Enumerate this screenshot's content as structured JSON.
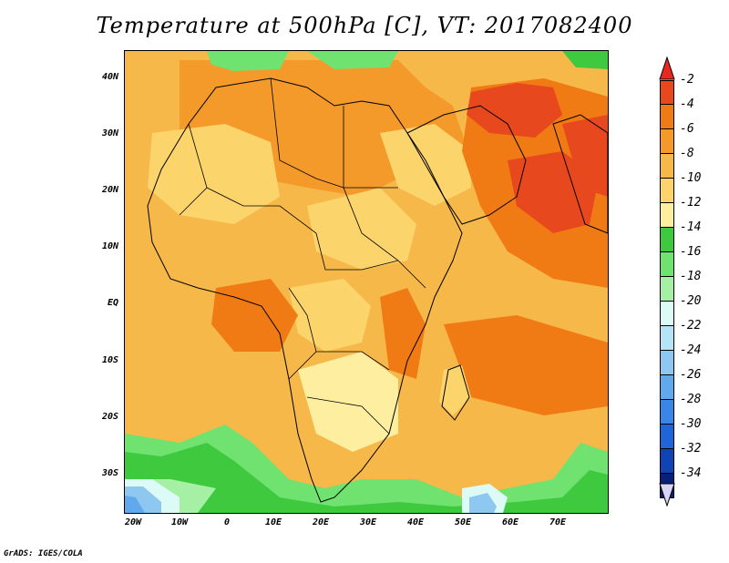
{
  "title": "Temperature at 500hPa [C], VT: 2017082400",
  "credit": "GrADS: IGES/COLA",
  "lat_labels": [
    "40N",
    "30N",
    "20N",
    "10N",
    "EQ",
    "10S",
    "20S",
    "30S"
  ],
  "lon_labels": [
    "20W",
    "10W",
    "0",
    "10E",
    "20E",
    "30E",
    "40E",
    "50E",
    "60E",
    "70E"
  ],
  "colorbar": {
    "labels": [
      "-2",
      "-4",
      "-6",
      "-8",
      "-10",
      "-12",
      "-14",
      "-16",
      "-18",
      "-20",
      "-22",
      "-24",
      "-26",
      "-28",
      "-30",
      "-32",
      "-34"
    ],
    "colors": [
      "#e8481d",
      "#f07a14",
      "#f49a2a",
      "#f7b84a",
      "#fbd46c",
      "#fdeea0",
      "#3fc93f",
      "#6fe26f",
      "#a6f0a6",
      "#dcfaf6",
      "#b4e4f6",
      "#8ec8f0",
      "#62a8ec",
      "#3a86e6",
      "#1f64d8",
      "#1043b4",
      "#0a1f7a"
    ],
    "top_arrow_color": "#e8281d",
    "bottom_arrow_color": "#d8d4f8"
  },
  "map_colors": {
    "ocean_base": "#f7b84a",
    "warm_core": "#e8481d",
    "warm": "#f07a14",
    "mild": "#f49a2a",
    "cool": "#fbd46c",
    "pale": "#fdeea0",
    "green_dark": "#3fc93f",
    "green": "#6fe26f",
    "green_light": "#a6f0a6",
    "cyan_pale": "#dcfaf6",
    "blue_light": "#8ec8f0",
    "blue": "#62a8ec"
  }
}
